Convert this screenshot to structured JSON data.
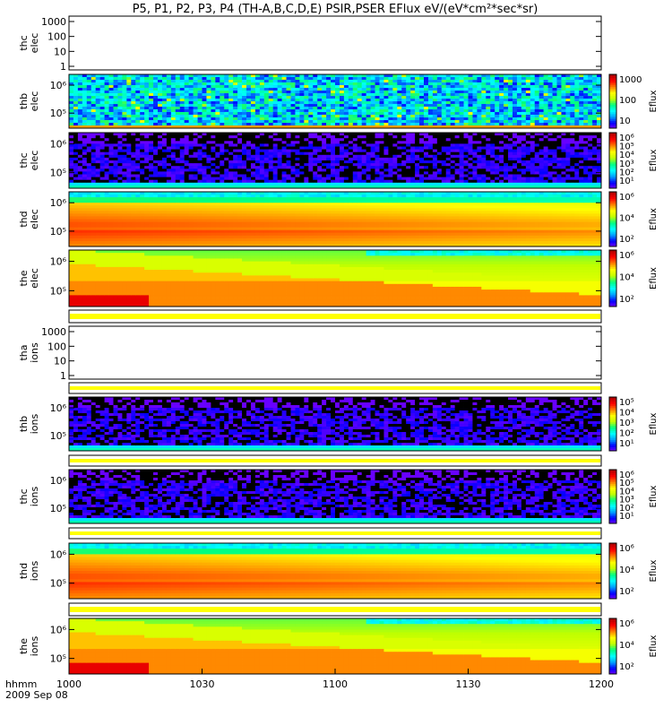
{
  "title": "P5, P1, P2, P3, P4 (TH-A,B,C,D,E) PSIR,PSER EFlux eV/(eV*cm²*sec*sr)",
  "colorbar_label": "Eflux",
  "time_axis": {
    "label": "hhmm",
    "date": "2009 Sep 08",
    "ticks": [
      "1000",
      "1030",
      "1100",
      "1130",
      "1200"
    ],
    "range": [
      "10:00",
      "12:00"
    ]
  },
  "colors": {
    "missing_bar": "#ffff00",
    "background": "#ffffff",
    "frame": "#000000",
    "colormap": [
      "#7f00ff",
      "#0000ff",
      "#00a0ff",
      "#00ffff",
      "#00ff80",
      "#c0ff00",
      "#ffff00",
      "#ff8000",
      "#ff0000",
      "#b00000"
    ]
  },
  "chart_data": [
    {
      "type": "line",
      "probe": "thc",
      "species": "elec",
      "content": "empty",
      "y_scale": "log",
      "ylim": [
        1,
        1000
      ],
      "ticks": [
        "1",
        "10",
        "100",
        "1000"
      ],
      "colorbar": null
    },
    {
      "type": "heatmap",
      "probe": "thb",
      "species": "elec",
      "content": "noisy",
      "y_scale": "log",
      "ticks": [
        "10⁵",
        "10⁶"
      ],
      "colorbar": {
        "scale": "log",
        "range": [
          1,
          3000
        ],
        "ticks": [
          "10",
          "100",
          "1000"
        ]
      }
    },
    {
      "type": "heatmap",
      "probe": "thc",
      "species": "elec",
      "content": "dark",
      "y_scale": "log",
      "ticks": [
        "10⁵",
        "10⁶"
      ],
      "colorbar": {
        "scale": "log",
        "range": [
          1,
          1000000
        ],
        "ticks": [
          "10¹",
          "10²",
          "10³",
          "10⁴",
          "10⁵",
          "10⁶"
        ]
      }
    },
    {
      "type": "heatmap",
      "probe": "thd",
      "species": "elec",
      "content": "plasma-d",
      "y_scale": "log",
      "ticks": [
        "10⁵",
        "10⁶"
      ],
      "colorbar": {
        "scale": "log",
        "range": [
          10,
          1000000
        ],
        "ticks": [
          "10²",
          "10⁴",
          "10⁶"
        ]
      }
    },
    {
      "type": "heatmap",
      "probe": "the",
      "species": "elec",
      "content": "plasma-e",
      "y_scale": "log",
      "ticks": [
        "10⁵",
        "10⁶"
      ],
      "colorbar": {
        "scale": "log",
        "range": [
          10,
          1000000
        ],
        "ticks": [
          "10²",
          "10⁴",
          "10⁶"
        ]
      }
    },
    {
      "type": "missing",
      "probe": "",
      "species": "",
      "content": "missing"
    },
    {
      "type": "line",
      "probe": "tha",
      "species": "ions",
      "content": "empty",
      "y_scale": "log",
      "ylim": [
        1,
        1000
      ],
      "ticks": [
        "1",
        "10",
        "100",
        "1000"
      ],
      "colorbar": null
    },
    {
      "type": "missing",
      "probe": "",
      "species": "",
      "content": "missing"
    },
    {
      "type": "heatmap",
      "probe": "thb",
      "species": "ions",
      "content": "dark",
      "y_scale": "log",
      "ticks": [
        "10⁵",
        "10⁶"
      ],
      "colorbar": {
        "scale": "log",
        "range": [
          1,
          100000
        ],
        "ticks": [
          "10¹",
          "10²",
          "10³",
          "10⁴",
          "10⁵"
        ]
      }
    },
    {
      "type": "missing",
      "probe": "",
      "species": "",
      "content": "missing"
    },
    {
      "type": "heatmap",
      "probe": "thc",
      "species": "ions",
      "content": "dark",
      "y_scale": "log",
      "ticks": [
        "10⁵",
        "10⁶"
      ],
      "colorbar": {
        "scale": "log",
        "range": [
          1,
          1000000
        ],
        "ticks": [
          "10¹",
          "10²",
          "10³",
          "10⁴",
          "10⁵",
          "10⁶"
        ]
      }
    },
    {
      "type": "missing",
      "probe": "",
      "species": "",
      "content": "missing"
    },
    {
      "type": "heatmap",
      "probe": "thd",
      "species": "ions",
      "content": "plasma-d",
      "y_scale": "log",
      "ticks": [
        "10⁵",
        "10⁶"
      ],
      "colorbar": {
        "scale": "log",
        "range": [
          10,
          1000000
        ],
        "ticks": [
          "10²",
          "10⁴",
          "10⁶"
        ]
      }
    },
    {
      "type": "missing",
      "probe": "",
      "species": "",
      "content": "missing"
    },
    {
      "type": "heatmap",
      "probe": "the",
      "species": "ions",
      "content": "plasma-e",
      "y_scale": "log",
      "ticks": [
        "10⁵",
        "10⁶"
      ],
      "colorbar": {
        "scale": "log",
        "range": [
          10,
          1000000
        ],
        "ticks": [
          "10²",
          "10⁴",
          "10⁶"
        ]
      }
    }
  ]
}
